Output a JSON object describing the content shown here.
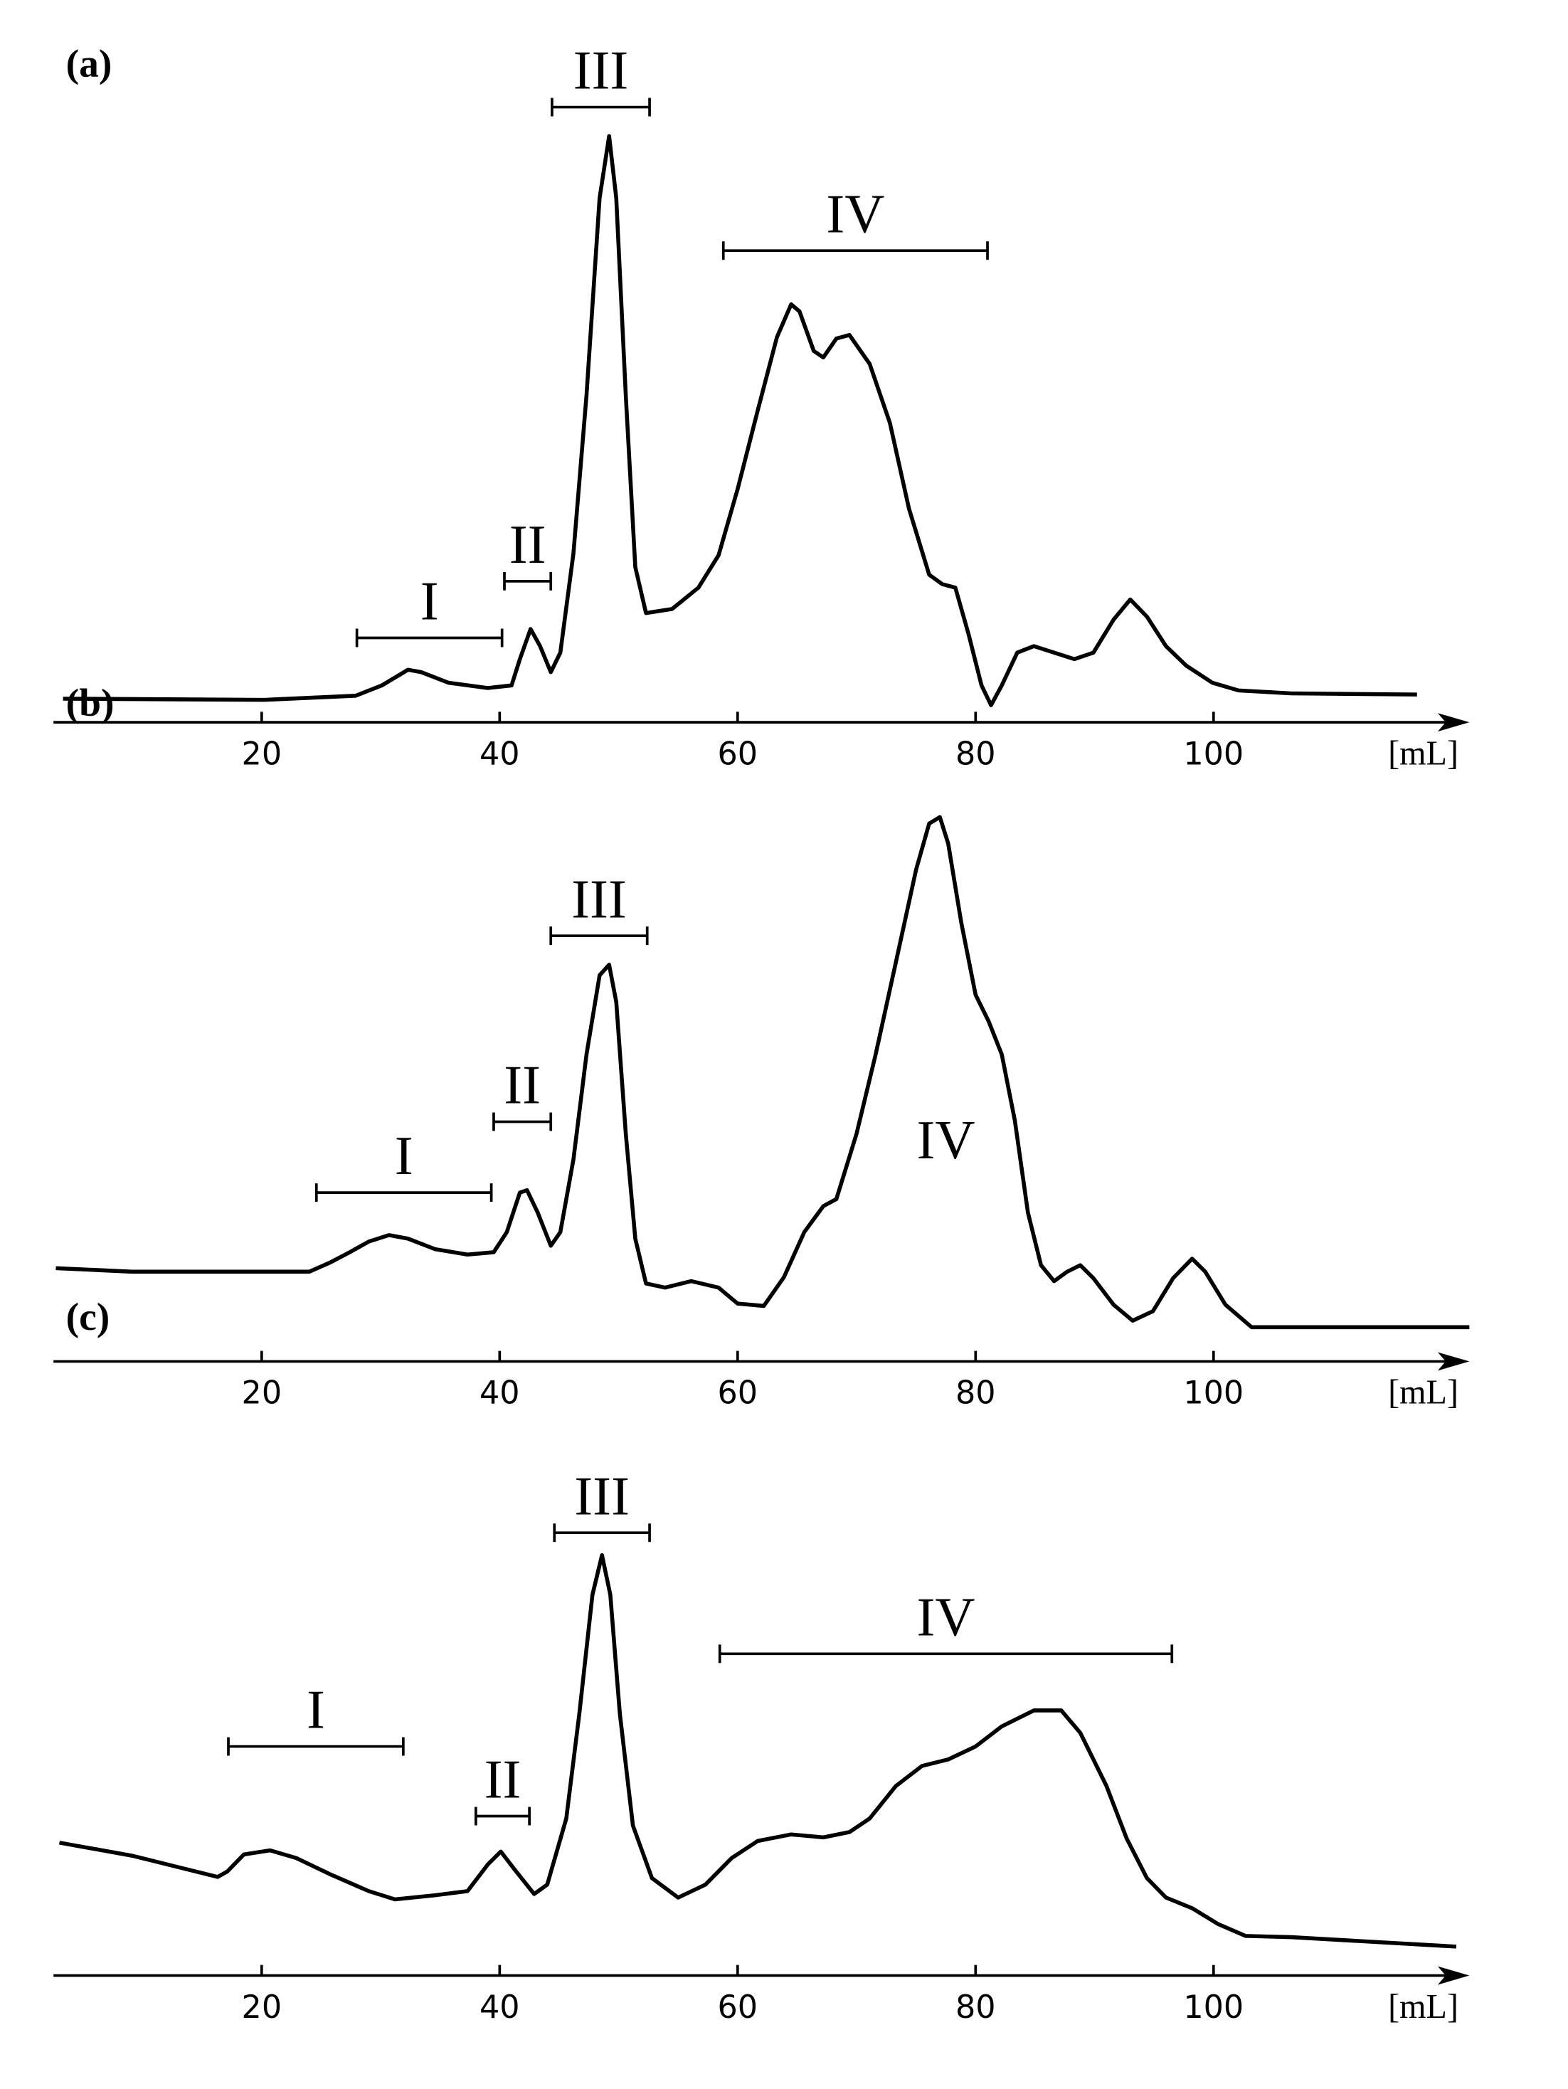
{
  "chart_data": [
    {
      "type": "line",
      "title": "(a)",
      "x_label": "[mL]",
      "color": "#000000",
      "xlim": [
        2.5,
        121.5
      ],
      "ylim": [
        0,
        100
      ],
      "xticks": [
        20,
        40,
        60,
        80,
        100
      ],
      "x": [
        3.3,
        20.2,
        27.9,
        30.1,
        32.3,
        33.4,
        35.7,
        39.0,
        41.0,
        41.7,
        42.6,
        43.4,
        44.3,
        45.1,
        46.2,
        47.3,
        48.4,
        49.2,
        49.8,
        50.6,
        51.4,
        52.3,
        54.5,
        56.7,
        58.4,
        60.0,
        61.7,
        63.3,
        64.5,
        65.2,
        66.4,
        67.2,
        68.3,
        69.4,
        71.1,
        72.8,
        74.4,
        76.1,
        77.2,
        78.3,
        79.4,
        80.5,
        81.3,
        82.2,
        83.5,
        84.9,
        86.6,
        88.3,
        89.9,
        91.6,
        93.0,
        94.4,
        96.0,
        97.7,
        99.9,
        102.1,
        106.5,
        117.1
      ],
      "values": [
        4.0,
        3.8,
        4.5,
        6.25,
        8.9,
        8.5,
        6.7,
        5.8,
        6.25,
        10.7,
        15.8,
        12.9,
        8.5,
        11.8,
        28.6,
        55.4,
        88.8,
        99.3,
        88.8,
        55.4,
        26.3,
        18.5,
        19.2,
        22.8,
        28.3,
        39.5,
        52.9,
        65.2,
        70.8,
        69.6,
        62.9,
        61.8,
        65.0,
        65.6,
        60.7,
        50.7,
        36.2,
        25.0,
        23.4,
        22.8,
        15.0,
        6.25,
        2.9,
        6.25,
        11.8,
        12.9,
        11.8,
        10.7,
        11.8,
        17.4,
        20.8,
        17.9,
        12.9,
        9.6,
        6.7,
        5.4,
        4.9,
        4.7
      ],
      "fractions": [
        {
          "label": "I",
          "start": 28.0,
          "end": 40.2,
          "level": 14.3
        },
        {
          "label": "II",
          "start": 40.4,
          "end": 44.3,
          "level": 23.9
        },
        {
          "label": "III",
          "start": 44.4,
          "end": 52.6,
          "level": 104.2
        },
        {
          "label": "IV",
          "start": 58.8,
          "end": 81.0,
          "level": 79.9
        }
      ]
    },
    {
      "type": "line",
      "title": "(b)",
      "x_label": "[mL]",
      "color": "#000000",
      "xlim": [
        2.5,
        121.5
      ],
      "ylim": [
        0,
        100
      ],
      "xticks": [
        20,
        40,
        60,
        80,
        100
      ],
      "x": [
        2.7,
        9.1,
        24.0,
        25.7,
        27.4,
        29.0,
        30.7,
        32.3,
        34.6,
        37.3,
        39.5,
        40.6,
        41.7,
        42.3,
        43.2,
        44.3,
        45.1,
        46.2,
        47.3,
        48.4,
        49.2,
        49.8,
        50.6,
        51.4,
        52.3,
        53.9,
        56.1,
        58.4,
        60.0,
        62.2,
        63.9,
        65.6,
        67.2,
        68.3,
        70.0,
        71.6,
        73.3,
        75.0,
        76.1,
        77.0,
        77.7,
        78.8,
        80.0,
        81.1,
        82.2,
        83.3,
        84.4,
        85.5,
        86.6,
        87.7,
        88.8,
        89.9,
        91.6,
        93.2,
        94.9,
        96.6,
        98.2,
        99.3,
        101.0,
        103.2,
        121.5
      ],
      "values": [
        15.8,
        15.2,
        15.2,
        16.7,
        18.5,
        20.3,
        21.4,
        20.8,
        19.0,
        18.1,
        18.5,
        21.9,
        28.6,
        29.0,
        25.2,
        19.6,
        21.9,
        34.2,
        52.0,
        65.4,
        67.2,
        60.9,
        38.6,
        20.8,
        13.2,
        12.5,
        13.6,
        12.5,
        9.8,
        9.4,
        14.3,
        21.9,
        26.3,
        27.5,
        38.6,
        52.0,
        67.6,
        83.3,
        91.1,
        92.2,
        87.7,
        74.3,
        62.1,
        57.6,
        52.0,
        40.8,
        25.2,
        16.3,
        13.6,
        15.2,
        16.3,
        14.1,
        9.6,
        6.9,
        8.5,
        14.1,
        17.4,
        15.2,
        9.6,
        5.8,
        5.8
      ],
      "fractions": [
        {
          "label": "I",
          "start": 24.6,
          "end": 39.3,
          "level": 28.6
        },
        {
          "label": "II",
          "start": 39.5,
          "end": 44.3,
          "level": 40.6
        },
        {
          "label": "III",
          "start": 44.3,
          "end": 52.4,
          "level": 72.1
        },
        {
          "label": "IV",
          "x": 77.5,
          "level": 37.5
        }
      ]
    },
    {
      "type": "line",
      "title": "(c)",
      "x_label": "[mL]",
      "color": "#000000",
      "xlim": [
        2.5,
        121.5
      ],
      "ylim": [
        0,
        100
      ],
      "xticks": [
        20,
        40,
        60,
        80,
        100
      ],
      "x": [
        3.0,
        9.1,
        16.3,
        17.1,
        18.5,
        20.7,
        22.9,
        25.7,
        29.0,
        31.2,
        34.6,
        37.3,
        39.0,
        40.1,
        41.2,
        42.9,
        44.0,
        45.6,
        46.7,
        47.8,
        48.6,
        49.3,
        50.1,
        51.2,
        52.8,
        55.0,
        57.3,
        59.5,
        61.7,
        64.5,
        67.2,
        69.4,
        71.1,
        73.3,
        75.5,
        77.7,
        80.0,
        82.2,
        84.9,
        87.2,
        88.8,
        91.0,
        92.7,
        94.4,
        96.0,
        98.2,
        100.4,
        102.7,
        106.5,
        120.4
      ],
      "values": [
        22.5,
        20.3,
        16.7,
        17.6,
        20.5,
        21.2,
        19.9,
        17.2,
        14.3,
        12.9,
        13.6,
        14.3,
        18.8,
        21.0,
        18.1,
        13.8,
        15.4,
        26.6,
        44.4,
        64.5,
        71.2,
        64.5,
        44.4,
        25.4,
        16.5,
        13.2,
        15.4,
        19.9,
        22.8,
        23.9,
        23.4,
        24.3,
        26.6,
        32.1,
        35.5,
        36.6,
        38.8,
        42.2,
        44.9,
        44.9,
        41.1,
        32.1,
        23.2,
        16.5,
        13.2,
        11.4,
        8.7,
        6.7,
        6.5,
        4.9
      ],
      "fractions": [
        {
          "label": "I",
          "start": 17.2,
          "end": 31.9,
          "level": 38.8
        },
        {
          "label": "II",
          "start": 38.0,
          "end": 42.5,
          "level": 27.0
        },
        {
          "label": "III",
          "start": 44.6,
          "end": 52.6,
          "level": 75.0
        },
        {
          "label": "IV",
          "start": 58.5,
          "end": 96.5,
          "level": 54.5
        }
      ]
    }
  ]
}
